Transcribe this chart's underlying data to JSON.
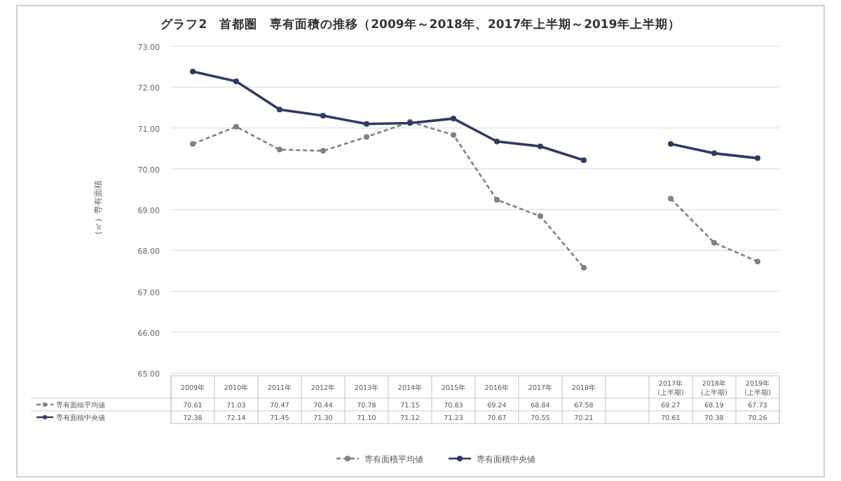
{
  "chart_data": {
    "type": "line",
    "title": "グラフ2　首都圏　専有面積の推移（2009年～2018年、2017年上半期～2019年上半期）",
    "ylabel": "（㎡）専有面積",
    "categories": [
      "2009年",
      "2010年",
      "2011年",
      "2012年",
      "2013年",
      "2014年",
      "2015年",
      "2016年",
      "2017年",
      "2018年",
      null,
      "2017年\n(上半期)",
      "2018年\n(上半期)",
      "2019年\n(上半期)"
    ],
    "series": [
      {
        "name": "専有面積平均値",
        "color": "#808080",
        "line_style": "dashed",
        "values": [
          70.61,
          71.03,
          70.47,
          70.44,
          70.78,
          71.15,
          70.83,
          69.24,
          68.84,
          67.58,
          null,
          69.27,
          68.19,
          67.73
        ],
        "value_labels": [
          "70.61",
          "71.03",
          "70.47",
          "70.44",
          "70.78",
          "71.15",
          "70.83",
          "69.24",
          "68.84",
          "67.58",
          null,
          "69.27",
          "68.19",
          "67.73"
        ]
      },
      {
        "name": "専有面積中央値",
        "color": "#2e3a63",
        "line_style": "solid",
        "values": [
          72.38,
          72.14,
          71.45,
          71.3,
          71.1,
          71.12,
          71.23,
          70.67,
          70.55,
          70.21,
          null,
          70.61,
          70.38,
          70.26
        ],
        "value_labels": [
          "72.38",
          "72.14",
          "71.45",
          "71.30",
          "71.10",
          "71.12",
          "71.23",
          "70.67",
          "70.55",
          "70.21",
          null,
          "70.61",
          "70.38",
          "70.26"
        ]
      }
    ],
    "marker": "circle",
    "ylim": [
      65,
      73
    ],
    "yticks": [
      {
        "value": 65,
        "label": "65.00"
      },
      {
        "value": 66,
        "label": "66.00"
      },
      {
        "value": 67,
        "label": "67.00"
      },
      {
        "value": 68,
        "label": "68.00"
      },
      {
        "value": 69,
        "label": "69.00"
      },
      {
        "value": 70,
        "label": "70.00"
      },
      {
        "value": 71,
        "label": "71.00"
      },
      {
        "value": 72,
        "label": "72.00"
      },
      {
        "value": 73,
        "label": "73.00"
      }
    ],
    "grid": "y",
    "legend": "bottom"
  }
}
